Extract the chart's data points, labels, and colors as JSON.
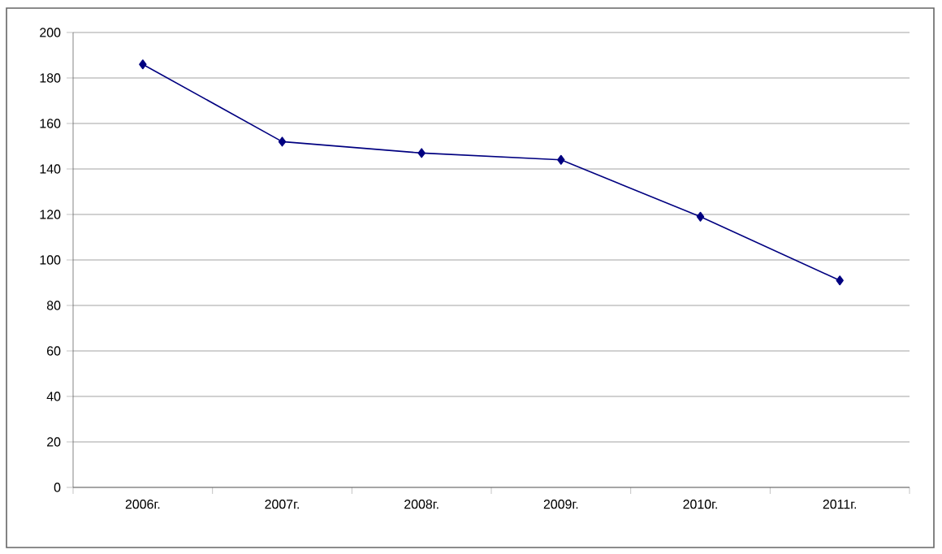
{
  "chart_data": {
    "type": "line",
    "categories": [
      "2006г.",
      "2007г.",
      "2008г.",
      "2009г.",
      "2010г.",
      "2011г."
    ],
    "series": [
      {
        "color": "#000080",
        "values": [
          186,
          152,
          147,
          144,
          119,
          91
        ]
      }
    ],
    "ylim": [
      0,
      200
    ],
    "yticks": [
      0,
      20,
      40,
      60,
      80,
      100,
      120,
      140,
      160,
      180,
      200
    ],
    "grid": "y",
    "marker": "diamond",
    "line_style": "solid"
  }
}
